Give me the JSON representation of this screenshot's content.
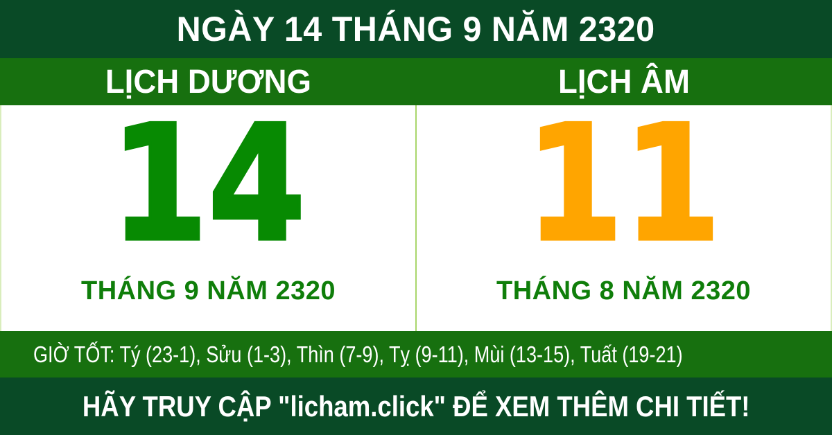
{
  "banner": {
    "title": "NGÀY 14 THÁNG 9 NĂM 2320"
  },
  "calendar": {
    "solar": {
      "heading": "LỊCH DƯƠNG",
      "day": "14",
      "month_year": "THÁNG 9 NĂM 2320"
    },
    "lunar": {
      "heading": "LỊCH ÂM",
      "day": "11",
      "month_year": "THÁNG 8 NĂM 2320"
    }
  },
  "good_hours": {
    "text": "GIỜ TỐT: Tý (23-1), Sửu (1-3), Thìn (7-9), Tỵ (9-11), Mùi (13-15), Tuất (19-21)"
  },
  "footer": {
    "text": "HÃY TRUY CẬP \"licham.click\" ĐỂ XEM THÊM CHI TIẾT!"
  },
  "colors": {
    "dark_green": "#094A26",
    "band_green": "#17700F",
    "solar_number_green": "#078A02",
    "lunar_number_orange": "#FFA500",
    "month_label_green": "#0F7E0A",
    "divider_light_green": "#A9D66B",
    "edge_pale_green": "#D9EDBC",
    "text_white": "#FFFFFF"
  }
}
